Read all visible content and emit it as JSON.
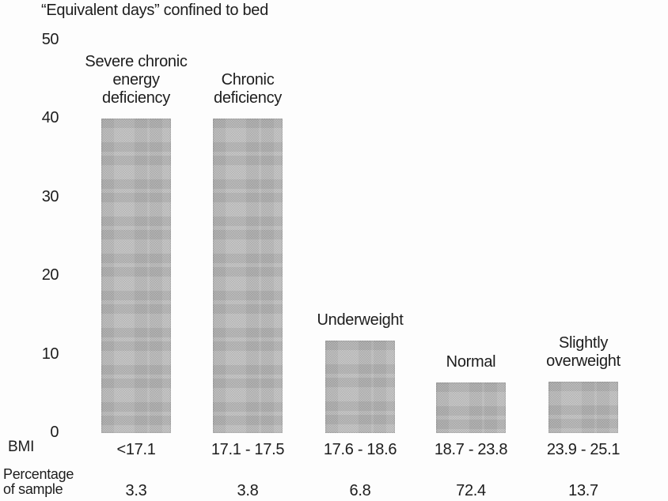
{
  "chart_data": {
    "type": "bar",
    "title": "“Equivalent days” confined to bed",
    "xlabel": "",
    "ylabel": "",
    "ylim": [
      0,
      50
    ],
    "yticks": [
      0,
      10,
      20,
      30,
      40,
      50
    ],
    "grid": false,
    "legend_position": "none",
    "bar_color": "#b7b7b7",
    "categories": [
      "Severe chronic\nenergy\ndeficiency",
      "Chronic\ndeficiency",
      "Underweight",
      "Normal",
      "Slightly\noverweight"
    ],
    "values": [
      40,
      40,
      11.8,
      6.4,
      6.5
    ],
    "x_rows": [
      {
        "header": "BMI",
        "values": [
          "<17.1",
          "17.1 - 17.5",
          "17.6 - 18.6",
          "18.7 - 23.8",
          "23.9 - 25.1"
        ]
      },
      {
        "header": "Percentage\nof sample",
        "values": [
          "3.3",
          "3.8",
          "6.8",
          "72.4",
          "13.7"
        ]
      }
    ]
  }
}
